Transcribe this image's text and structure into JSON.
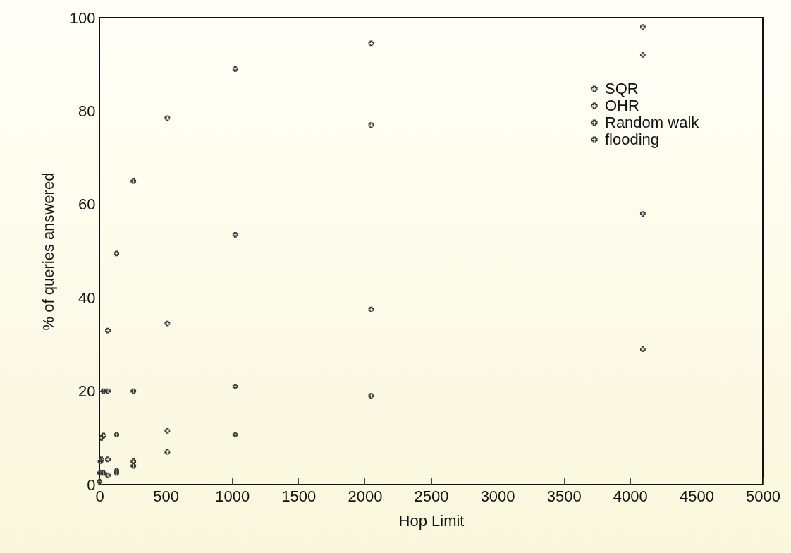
{
  "chart_data": {
    "type": "scatter",
    "xlabel": "Hop Limit",
    "ylabel": "% of queries answered",
    "xlim": [
      0,
      5000
    ],
    "xticks": [
      0,
      500,
      1000,
      1500,
      2000,
      2500,
      3000,
      3500,
      4000,
      4500,
      5000
    ],
    "ylim": [
      0,
      100
    ],
    "yticks": [
      0,
      20,
      40,
      60,
      80,
      100
    ],
    "x": [
      1,
      4,
      8,
      16,
      32,
      64,
      128,
      256,
      512,
      1024,
      2048,
      4096
    ],
    "series": [
      {
        "name": "SQR",
        "color": "#3a3a3a",
        "values": [
          0.6,
          2.5,
          5,
          10,
          20,
          33,
          49.5,
          65,
          78.5,
          89,
          94.5,
          98
        ]
      },
      {
        "name": "OHR",
        "color": "#3a3a3a",
        "x": [
          16,
          32,
          64,
          128,
          256,
          512,
          1024,
          2048,
          4096
        ],
        "values": [
          5.4,
          10.5,
          20,
          10.7,
          20,
          34.5,
          53.5,
          77,
          92
        ]
      },
      {
        "name": "Random walk",
        "color": "#3a3a3a",
        "x": [
          32,
          64,
          128,
          256,
          512,
          1024,
          2048,
          4096
        ],
        "values": [
          2.5,
          5.4,
          3,
          5,
          11.5,
          21,
          37.5,
          58
        ]
      },
      {
        "name": "flooding",
        "color": "#3a3a3a",
        "x": [
          64,
          128,
          256,
          512,
          1024,
          2048,
          4096
        ],
        "values": [
          2,
          2.5,
          4,
          7,
          10.7,
          19,
          29
        ]
      }
    ],
    "grid": false,
    "legend": "top right",
    "marker": "cross"
  }
}
